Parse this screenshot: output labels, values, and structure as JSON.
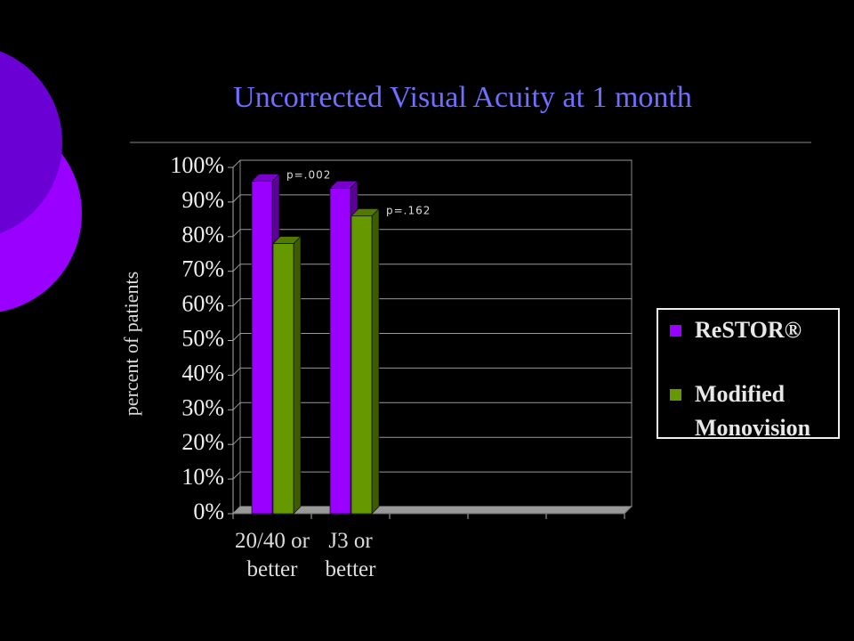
{
  "chart_data": {
    "type": "bar3d",
    "title": "Uncorrected Visual Acuity at 1 month",
    "y_label": "percent of patients",
    "categories": [
      "20/40 or better",
      "J3 or better",
      null,
      null,
      null
    ],
    "series": [
      {
        "name": "ReSTOR®",
        "color": "#9900ff",
        "values": [
          96,
          94,
          null,
          null,
          null
        ]
      },
      {
        "name": "Modified Monovision",
        "color": "#669900",
        "values": [
          78,
          86,
          null,
          null,
          null
        ]
      }
    ],
    "annotations": [
      "p=.002",
      "p=.162"
    ],
    "ylim": [
      0,
      100
    ],
    "yticks": [
      {
        "value": 0,
        "label": "0%"
      },
      {
        "value": 10,
        "label": "10%"
      },
      {
        "value": 20,
        "label": "20%"
      },
      {
        "value": 30,
        "label": "30%"
      },
      {
        "value": 40,
        "label": "40%"
      },
      {
        "value": 50,
        "label": "50%"
      },
      {
        "value": 60,
        "label": "60%"
      },
      {
        "value": 70,
        "label": "70%"
      },
      {
        "value": 80,
        "label": "80%"
      },
      {
        "value": 90,
        "label": "90%"
      },
      {
        "value": 100,
        "label": "100%"
      }
    ],
    "grid": true,
    "legend": "right"
  }
}
